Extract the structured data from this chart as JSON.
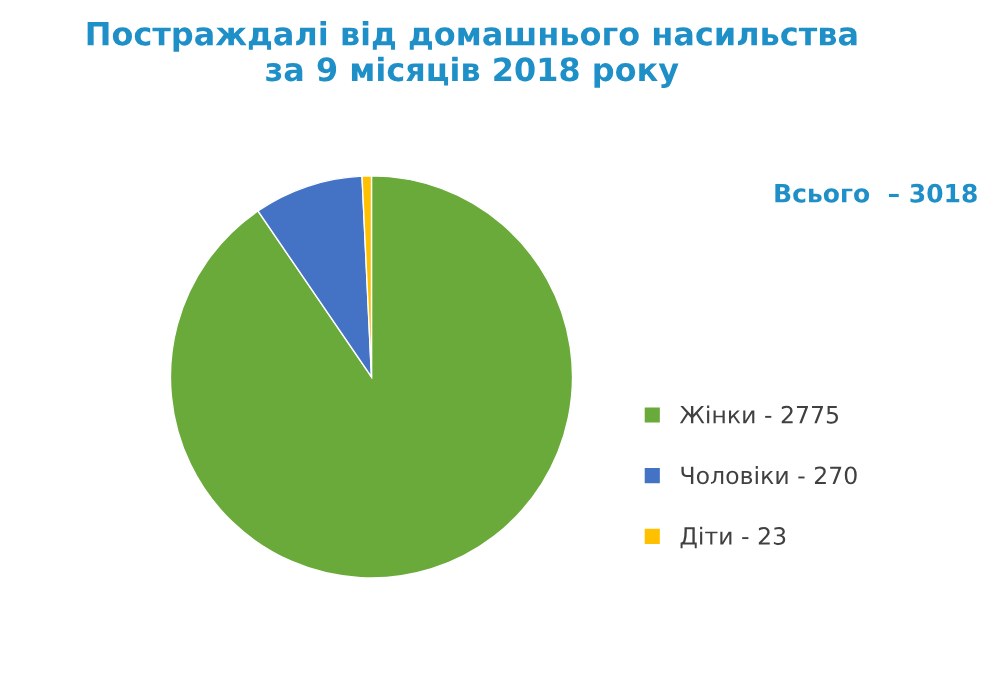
{
  "chart_data": {
    "type": "pie",
    "title": "Постраждалі від домашнього насильства\nза 9 місяців 2018 року",
    "categories": [
      "Жінки",
      "Чоловіки",
      "Діти"
    ],
    "values": [
      2775,
      270,
      23
    ],
    "value_labels": [
      "2775",
      "270",
      "23"
    ],
    "colors": [
      "#6aaa3a",
      "#4472c4",
      "#ffc000"
    ],
    "annotations": [
      "Всього  – 3018"
    ],
    "legend": "right"
  }
}
